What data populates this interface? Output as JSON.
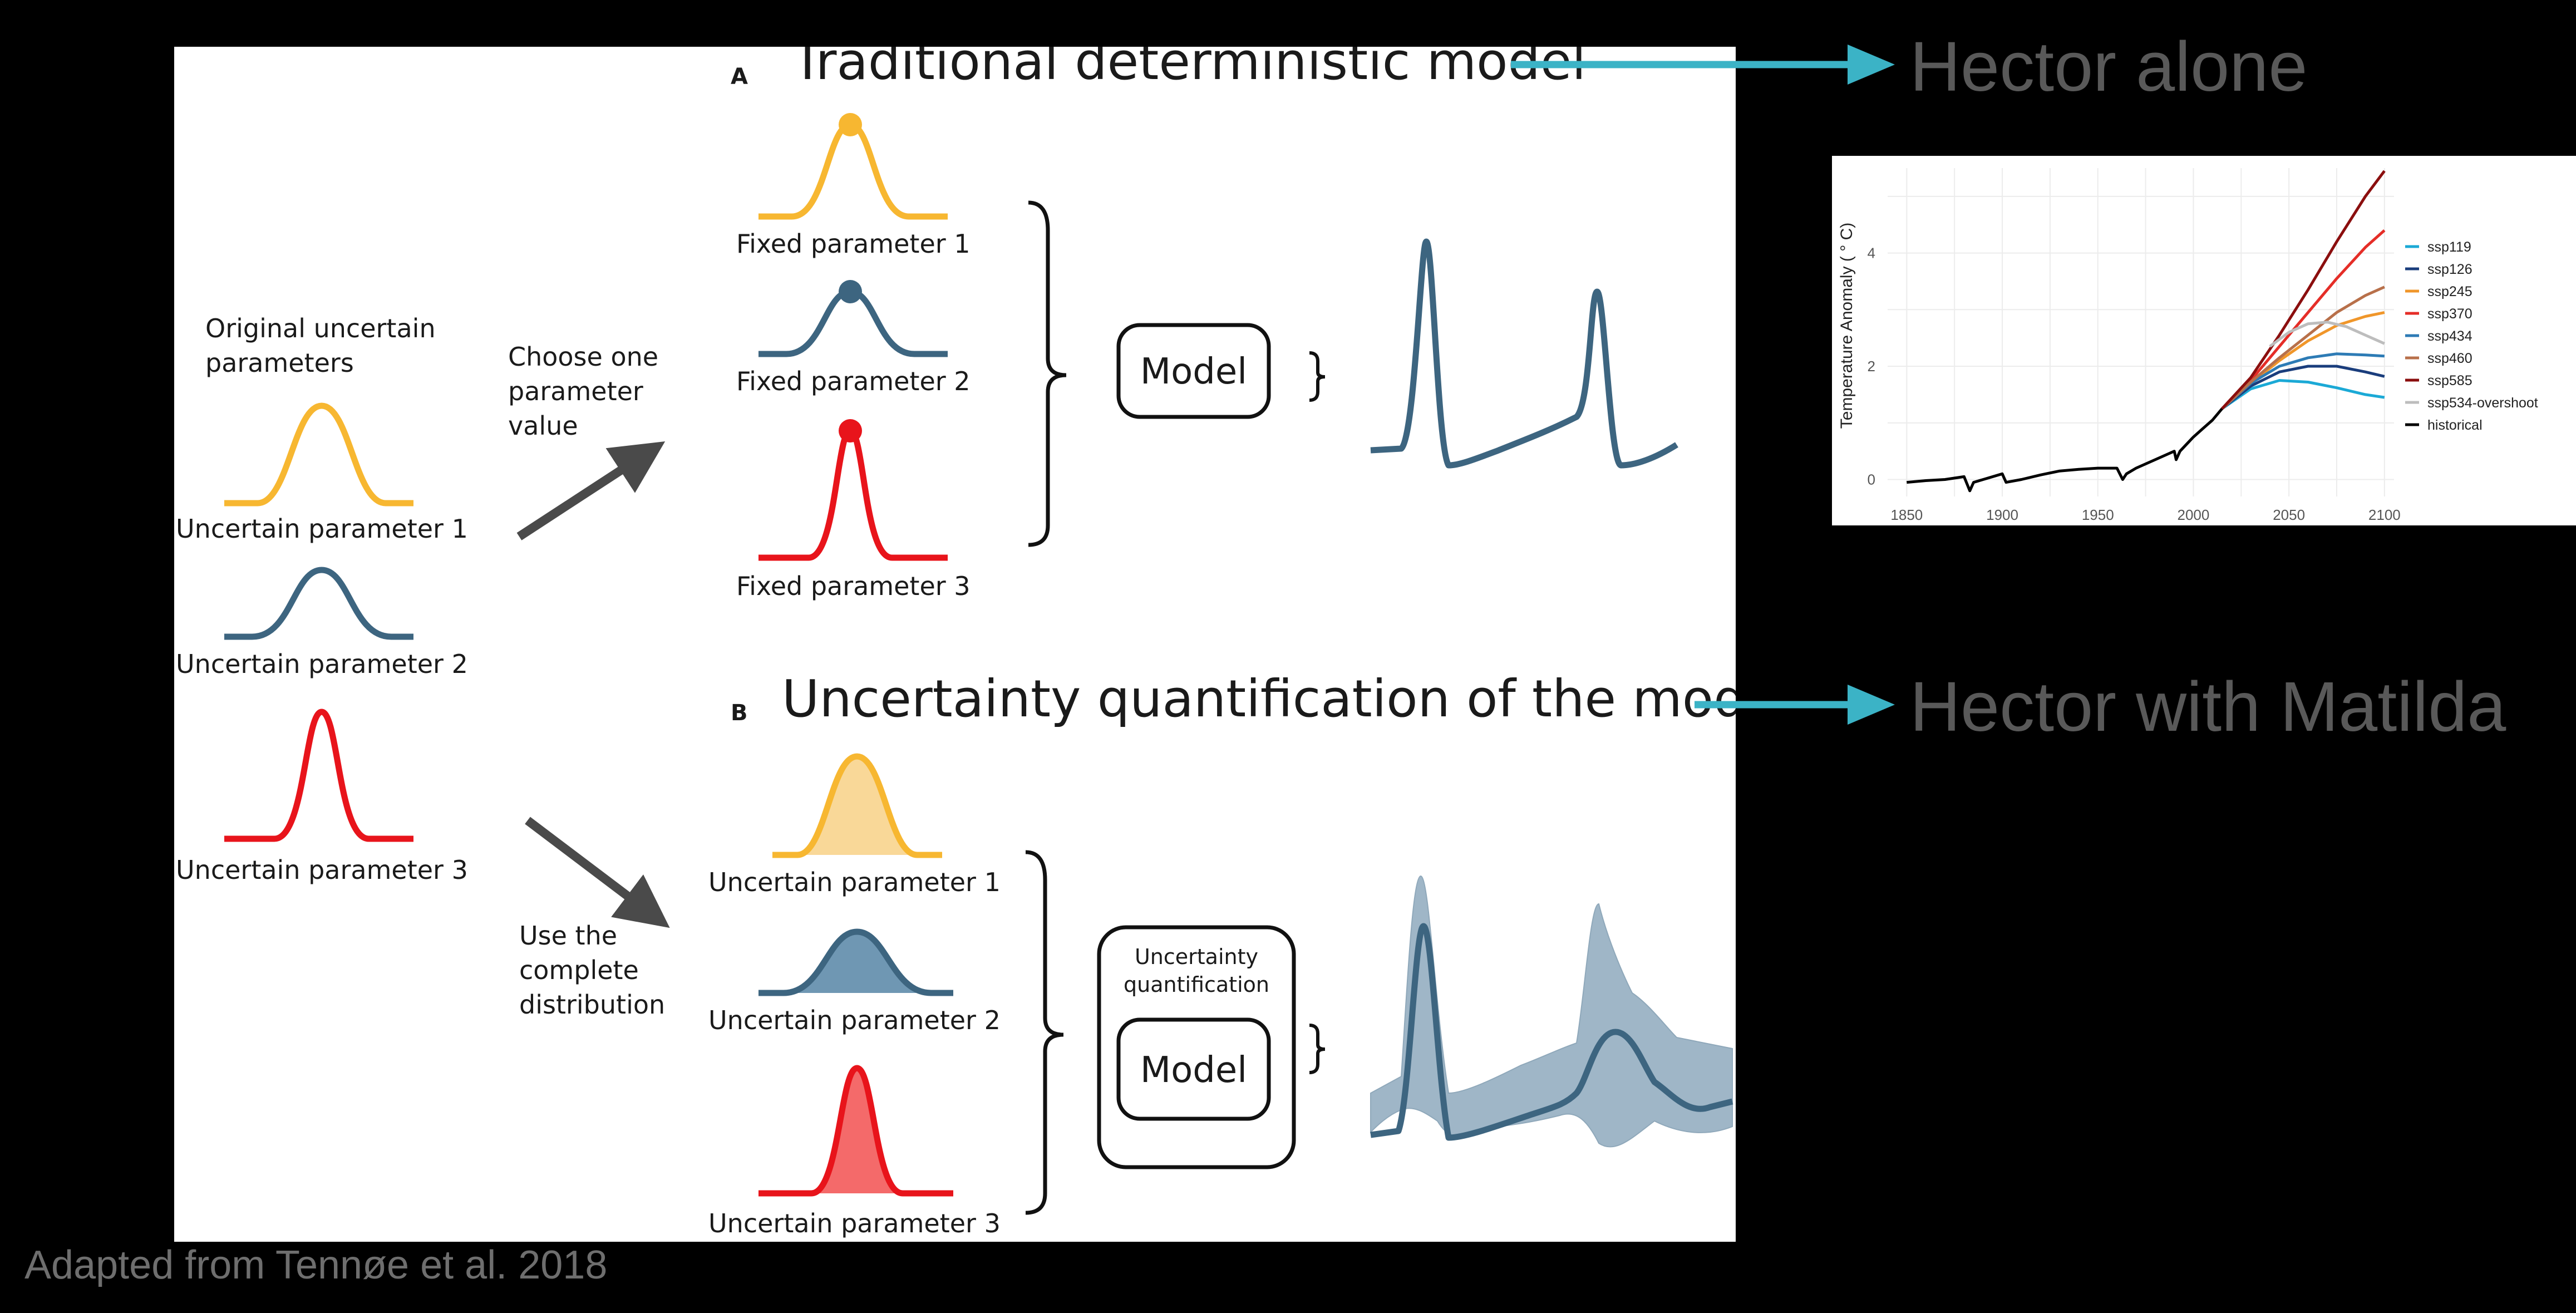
{
  "diagram": {
    "panel_a_letter": "A",
    "panel_a_title": "Traditional deterministic model",
    "panel_b_letter": "B",
    "panel_b_title": "Uncertainty quantification of the model",
    "original_label_line1": "Original uncertain",
    "original_label_line2": "parameters",
    "uncertain_params": [
      "Uncertain parameter 1",
      "Uncertain parameter 2",
      "Uncertain parameter 3"
    ],
    "choose_label": [
      "Choose one",
      "parameter",
      "value"
    ],
    "use_label": [
      "Use the",
      "complete",
      "distribution"
    ],
    "fixed_params": [
      "Fixed parameter 1",
      "Fixed parameter 2",
      "Fixed parameter 3"
    ],
    "model_label": "Model",
    "uq_label_line1": "Uncertainty",
    "uq_label_line2": "quantification",
    "colors": {
      "yellow": "#f7b731",
      "blue": "#3d6580",
      "red": "#e8141b",
      "arrow": "#4a4a4a"
    }
  },
  "annotations": {
    "hector_alone": "Hector alone",
    "hector_matilda": "Hector with Matilda",
    "arrow_color": "#3bb3c6",
    "credit": "Adapted from Tennøe et al. 2018"
  },
  "chart_data": {
    "type": "line",
    "title": "",
    "xlabel": "",
    "ylabel": "Temperature Anomaly ( ° C)",
    "xlim": [
      1840,
      2105
    ],
    "ylim": [
      -0.3,
      5.5
    ],
    "x_ticks": [
      1850,
      1900,
      1950,
      2000,
      2050,
      2100
    ],
    "y_ticks": [
      0,
      2,
      4
    ],
    "grid": true,
    "legend_position": "right",
    "series": [
      {
        "name": "ssp119",
        "color": "#1ba9d6",
        "x": [
          2015,
          2030,
          2045,
          2060,
          2075,
          2090,
          2100
        ],
        "y": [
          1.25,
          1.6,
          1.75,
          1.72,
          1.62,
          1.5,
          1.45
        ]
      },
      {
        "name": "ssp126",
        "color": "#1a3d7c",
        "x": [
          2015,
          2030,
          2045,
          2060,
          2075,
          2090,
          2100
        ],
        "y": [
          1.25,
          1.65,
          1.9,
          2.0,
          2.0,
          1.9,
          1.82
        ]
      },
      {
        "name": "ssp245",
        "color": "#f0962a",
        "x": [
          2015,
          2030,
          2045,
          2060,
          2075,
          2090,
          2100
        ],
        "y": [
          1.25,
          1.7,
          2.1,
          2.45,
          2.72,
          2.88,
          2.95
        ]
      },
      {
        "name": "ssp370",
        "color": "#e52d27",
        "x": [
          2015,
          2030,
          2045,
          2060,
          2075,
          2090,
          2100
        ],
        "y": [
          1.25,
          1.75,
          2.35,
          2.95,
          3.55,
          4.1,
          4.4
        ]
      },
      {
        "name": "ssp434",
        "color": "#2d7bb5",
        "x": [
          2015,
          2030,
          2045,
          2060,
          2075,
          2090,
          2100
        ],
        "y": [
          1.25,
          1.7,
          2.0,
          2.15,
          2.22,
          2.2,
          2.18
        ]
      },
      {
        "name": "ssp460",
        "color": "#b8704a",
        "x": [
          2015,
          2030,
          2045,
          2060,
          2075,
          2090,
          2100
        ],
        "y": [
          1.25,
          1.72,
          2.15,
          2.55,
          2.95,
          3.25,
          3.4
        ]
      },
      {
        "name": "ssp585",
        "color": "#8b0e0e",
        "x": [
          2015,
          2030,
          2045,
          2060,
          2075,
          2090,
          2100
        ],
        "y": [
          1.25,
          1.8,
          2.55,
          3.35,
          4.2,
          5.0,
          5.45
        ]
      },
      {
        "name": "ssp534-overshoot",
        "color": "#bdbdbd",
        "x": [
          2040,
          2050,
          2060,
          2070,
          2080,
          2090,
          2100
        ],
        "y": [
          2.35,
          2.6,
          2.75,
          2.78,
          2.7,
          2.55,
          2.4
        ]
      },
      {
        "name": "historical",
        "color": "#000000",
        "x": [
          1850,
          1860,
          1870,
          1880,
          1883,
          1885,
          1890,
          1900,
          1902,
          1910,
          1920,
          1930,
          1940,
          1950,
          1960,
          1963,
          1965,
          1970,
          1980,
          1990,
          1991,
          1993,
          2000,
          2005,
          2010,
          2015
        ],
        "y": [
          -0.05,
          -0.02,
          0.0,
          0.05,
          -0.2,
          -0.05,
          0.0,
          0.1,
          -0.05,
          0.0,
          0.08,
          0.15,
          0.18,
          0.2,
          0.2,
          0.0,
          0.1,
          0.2,
          0.35,
          0.5,
          0.35,
          0.5,
          0.75,
          0.9,
          1.05,
          1.25
        ]
      }
    ]
  }
}
